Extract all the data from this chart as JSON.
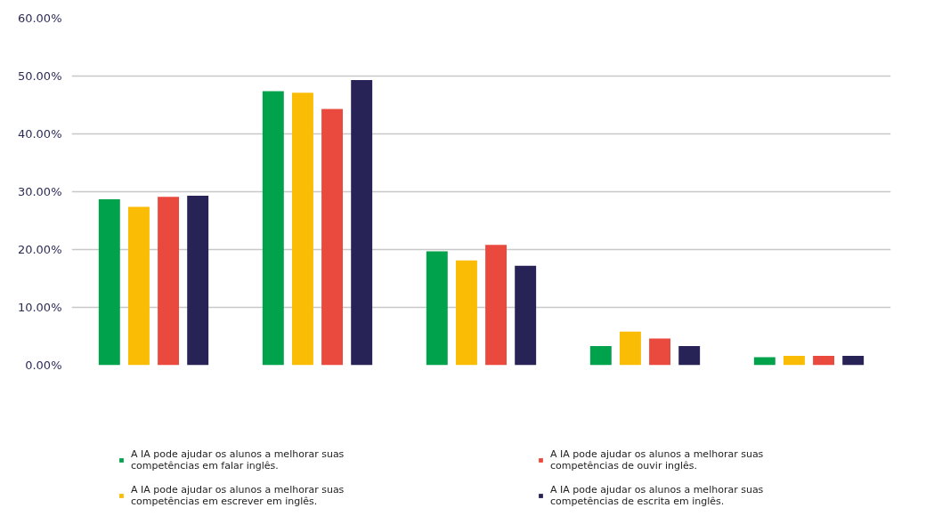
{
  "chart_data": {
    "type": "bar",
    "categories": [
      null,
      null,
      null,
      null,
      null
    ],
    "series": [
      {
        "name": "A IA pode ajudar os alunos a melhorar suas competências em falar inglês.",
        "color": "#00a24b",
        "values": [
          28.7,
          47.4,
          19.7,
          3.3,
          1.4
        ]
      },
      {
        "name": "A IA pode ajudar os alunos a melhorar suas competências em escrever em inglês.",
        "color": "#fbbc05",
        "values": [
          27.4,
          47.1,
          18.1,
          5.8,
          1.6
        ]
      },
      {
        "name": "A IA pode ajudar os alunos a melhorar suas competências de ouvir inglês.",
        "color": "#ea4a3d",
        "values": [
          29.1,
          44.3,
          20.8,
          4.6,
          1.6
        ]
      },
      {
        "name": "A IA pode ajudar os alunos a melhorar suas competências de escrita em inglês.",
        "color": "#272356",
        "values": [
          29.3,
          49.3,
          17.2,
          3.3,
          1.6
        ]
      }
    ],
    "ylim": [
      0,
      60
    ],
    "yticks": [
      {
        "value": 0,
        "label": "0.00%"
      },
      {
        "value": 10,
        "label": "10.00%"
      },
      {
        "value": 20,
        "label": "20.00%"
      },
      {
        "value": 30,
        "label": "30.00%"
      },
      {
        "value": 40,
        "label": "40.00%"
      },
      {
        "value": 50,
        "label": "50.00%"
      },
      {
        "value": 60,
        "label": "60.00%"
      }
    ],
    "grid": "y",
    "legend": "bottom"
  }
}
